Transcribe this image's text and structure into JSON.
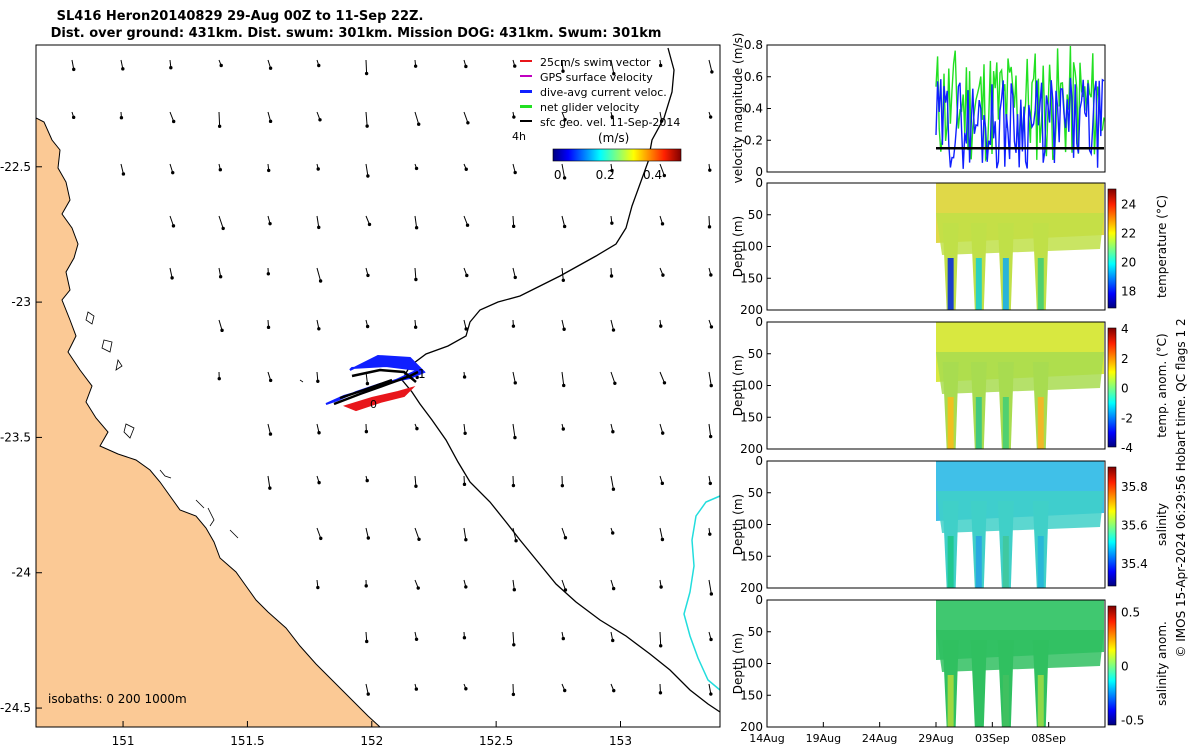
{
  "titles": {
    "line1": "SL416 Heron20140829 29-Aug 00Z to 11-Sep 22Z.",
    "line2": "Dist. over ground: 431km. Dist. swum: 301km. Mission DOG: 431km. Swum: 301km"
  },
  "colors": {
    "land": "#fbc995",
    "swim": "#e8161b",
    "gps": "#c000c0",
    "current": "#1020ff",
    "net": "#22e022",
    "geo": "#000000",
    "isobath": "#22dddd"
  },
  "chart_data": [
    {
      "type": "scatter",
      "name": "map",
      "xticks": [
        "151",
        "151.5",
        "152",
        "152.5",
        "153"
      ],
      "yticks": [
        "-22.5",
        "-23",
        "-23.5",
        "-24",
        "-24.5"
      ],
      "xlim": [
        150.65,
        153.4
      ],
      "ylim": [
        -24.57,
        -22.05
      ],
      "legend": [
        {
          "label": "25cm/s swim vector",
          "color": "#e8161b"
        },
        {
          "label": "GPS surface velocity",
          "color": "#c000c0"
        },
        {
          "label": "dive-avg current veloc.",
          "color": "#1020ff"
        },
        {
          "label": "net glider velocity",
          "color": "#22e022"
        },
        {
          "label": "sfc geo. vel. 11-Sep-2014",
          "color": "#000000"
        }
      ],
      "interval_label": "4h",
      "colorbar": {
        "label": "(m/s)",
        "ticks": [
          "0",
          "0.2",
          "0.4"
        ],
        "range": [
          -0.02,
          0.52
        ]
      },
      "isobaths_label": "isobaths: 0   200  1000m",
      "track_markers": [
        "1",
        "0"
      ]
    },
    {
      "type": "line",
      "name": "velocity",
      "ylabel": "velocity magnitude (m/s)",
      "yticks": [
        "0",
        "0.2",
        "0.4",
        "0.6",
        "0.8"
      ],
      "ylim": [
        0,
        0.8
      ],
      "xlim": [
        0,
        1
      ],
      "series": [
        {
          "name": "net glider velocity",
          "color": "#22e022"
        },
        {
          "name": "dive-avg current veloc.",
          "color": "#1020ff"
        },
        {
          "name": "sfc geo. vel.",
          "color": "#000000",
          "values": [
            0.15,
            0.15
          ]
        }
      ]
    },
    {
      "type": "heatmap",
      "name": "temperature",
      "ylabel": "Depth (m)",
      "yticks": [
        "0",
        "50",
        "100",
        "150",
        "200"
      ],
      "colorbar_label": "temperature (°C)",
      "colorbar_ticks": [
        "24",
        "22",
        "20",
        "18"
      ],
      "colorbar_range": [
        16.8,
        25
      ]
    },
    {
      "type": "heatmap",
      "name": "temp_anom",
      "ylabel": "Depth (m)",
      "yticks": [
        "0",
        "50",
        "100",
        "150",
        "200"
      ],
      "colorbar_label": "temp. anom. (°C)",
      "colorbar_ticks": [
        "4",
        "2",
        "0",
        "-2",
        "-4"
      ],
      "colorbar_range": [
        -4,
        4
      ]
    },
    {
      "type": "heatmap",
      "name": "salinity",
      "ylabel": "Depth (m)",
      "yticks": [
        "0",
        "50",
        "100",
        "150",
        "200"
      ],
      "colorbar_label": "salinity",
      "colorbar_ticks": [
        "35.8",
        "35.6",
        "35.4"
      ],
      "colorbar_range": [
        35.28,
        35.9
      ]
    },
    {
      "type": "heatmap",
      "name": "sal_anom",
      "ylabel": "Depth (m)",
      "yticks": [
        "0",
        "50",
        "100",
        "150",
        "200"
      ],
      "colorbar_label": "salinity anom.",
      "colorbar_ticks": [
        "0.5",
        "0",
        "-0.5"
      ],
      "colorbar_range": [
        -0.55,
        0.55
      ]
    }
  ],
  "time_axis": {
    "labels": [
      "14Aug",
      "19Aug",
      "24Aug",
      "29Aug",
      "03Sep",
      "08Sep"
    ],
    "xlim_days": [
      0,
      30
    ],
    "label_days": [
      0,
      5,
      10,
      15,
      20,
      25
    ]
  },
  "side_note": "© IMOS 15-Apr-2024 06:29:56 Hobart time. QC flags 1  2"
}
